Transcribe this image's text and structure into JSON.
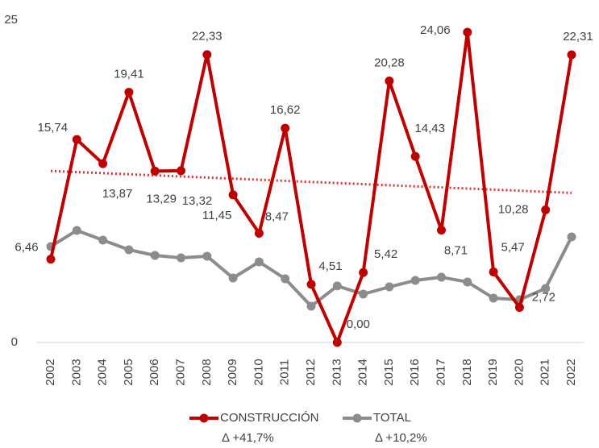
{
  "chart_data": {
    "type": "line",
    "categories": [
      "2002",
      "2003",
      "2004",
      "2005",
      "2006",
      "2007",
      "2008",
      "2009",
      "2010",
      "2011",
      "2012",
      "2013",
      "2014",
      "2015",
      "2016",
      "2017",
      "2018",
      "2019",
      "2020",
      "2021",
      "2022"
    ],
    "series": [
      {
        "name": "CONSTRUCCIÓN",
        "legend_note": "Δ +41,7%",
        "color": "#c00000",
        "values": [
          6.46,
          15.74,
          13.87,
          19.41,
          13.29,
          13.32,
          22.33,
          11.45,
          8.47,
          16.62,
          4.51,
          0.0,
          5.42,
          20.28,
          14.43,
          8.71,
          24.06,
          5.47,
          2.72,
          10.28,
          22.31
        ],
        "value_labels": [
          "6,46",
          "15,74",
          "13,87",
          "19,41",
          "13,29",
          "13,32",
          "22,33",
          "11,45",
          "8,47",
          "16,62",
          "4,51",
          "0,00",
          "5,42",
          "20,28",
          "14,43",
          "8,71",
          "24,06",
          "5,47",
          "2,72",
          "10,28",
          "22,31"
        ],
        "trendline": {
          "color": "#e03030",
          "values": [
            13.3,
            11.6
          ]
        }
      },
      {
        "name": "TOTAL",
        "legend_note": "Δ +10,2%",
        "color": "#8c8c8c",
        "values": [
          7.44,
          8.69,
          7.94,
          7.19,
          6.75,
          6.56,
          6.69,
          5.0,
          6.25,
          4.94,
          2.81,
          4.38,
          3.75,
          4.31,
          4.81,
          5.06,
          4.69,
          3.44,
          3.31,
          4.19,
          8.19
        ]
      }
    ],
    "ylim": [
      0,
      25
    ],
    "yticks": [
      0,
      25
    ]
  }
}
